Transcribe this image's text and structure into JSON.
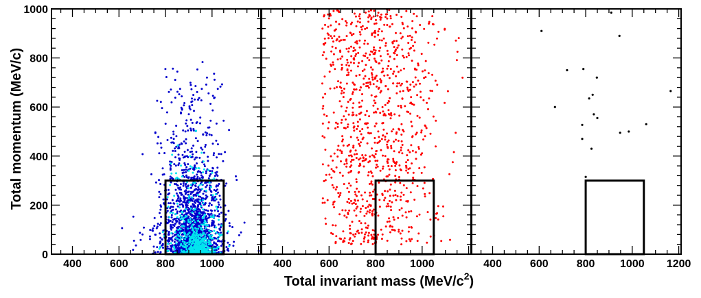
{
  "chart_data": {
    "type": "scatter",
    "xlabel": "Total invariant mass (MeV/c²)",
    "xlabel_base": "Total invariant mass (MeV/c",
    "xlabel_sup": "2",
    "xlabel_close": ")",
    "ylabel": "Total momentum (MeV/c)",
    "ylim": [
      0,
      1000
    ],
    "y_ticks": [
      "0",
      "200",
      "400",
      "600",
      "800",
      "1000"
    ],
    "colors": {
      "dark_blue": "#0000cc",
      "cyan": "#00e5ee",
      "red": "#ff0000",
      "black": "#000000"
    },
    "panels": [
      {
        "xlim": [
          310,
          1210
        ],
        "x_ticks": [
          "400",
          "600",
          "800",
          "1000"
        ],
        "signal_box": {
          "x": [
            800,
            1050
          ],
          "y": [
            0,
            300
          ]
        },
        "clusters": [
          {
            "color": "dark_blue",
            "count": 1150,
            "x_center": 915,
            "x_sd": 75,
            "y_mode": "exp",
            "y_scale": 200,
            "y_max": 810,
            "x_range": [
              600,
              1210
            ]
          },
          {
            "color": "dark_blue",
            "count": 650,
            "x_center": 920,
            "x_sd": 40,
            "y_mode": "exp",
            "y_scale": 95,
            "y_max": 320,
            "x_range": [
              800,
              1060
            ]
          },
          {
            "color": "cyan",
            "count": 320,
            "x_center": 920,
            "x_sd": 55,
            "y_mode": "exp",
            "y_scale": 110,
            "y_max": 800,
            "x_range": [
              760,
              1210
            ]
          },
          {
            "color": "cyan",
            "count": 280,
            "x_center": 945,
            "x_sd": 25,
            "y_mode": "exp",
            "y_scale": 35,
            "y_max": 200,
            "x_range": [
              860,
              1010
            ]
          }
        ]
      },
      {
        "xlim": [
          310,
          1210
        ],
        "x_ticks": [
          "400",
          "600",
          "800",
          "1000"
        ],
        "signal_box": {
          "x": [
            800,
            1050
          ],
          "y": [
            0,
            300
          ]
        },
        "clusters": [
          {
            "color": "red",
            "count": 1000,
            "x_center": 780,
            "x_sd": 150,
            "y_mode": "uniform",
            "y_min": 40,
            "y_max": 1000,
            "x_range": [
              570,
              1210
            ]
          }
        ]
      },
      {
        "xlim": [
          310,
          1210
        ],
        "x_ticks": [
          "400",
          "600",
          "800",
          "1000",
          "1200"
        ],
        "signal_box": {
          "x": [
            800,
            1050
          ],
          "y": [
            0,
            300
          ]
        },
        "points": [
          [
            610,
            910
          ],
          [
            910,
            985
          ],
          [
            945,
            890
          ],
          [
            720,
            750
          ],
          [
            790,
            755
          ],
          [
            848,
            720
          ],
          [
            668,
            600
          ],
          [
            830,
            650
          ],
          [
            815,
            635
          ],
          [
            1165,
            665
          ],
          [
            835,
            570
          ],
          [
            850,
            555
          ],
          [
            785,
            527
          ],
          [
            1060,
            530
          ],
          [
            948,
            495
          ],
          [
            985,
            500
          ],
          [
            785,
            470
          ],
          [
            825,
            430
          ],
          [
            800,
            315
          ]
        ],
        "point_color": "black"
      }
    ]
  }
}
